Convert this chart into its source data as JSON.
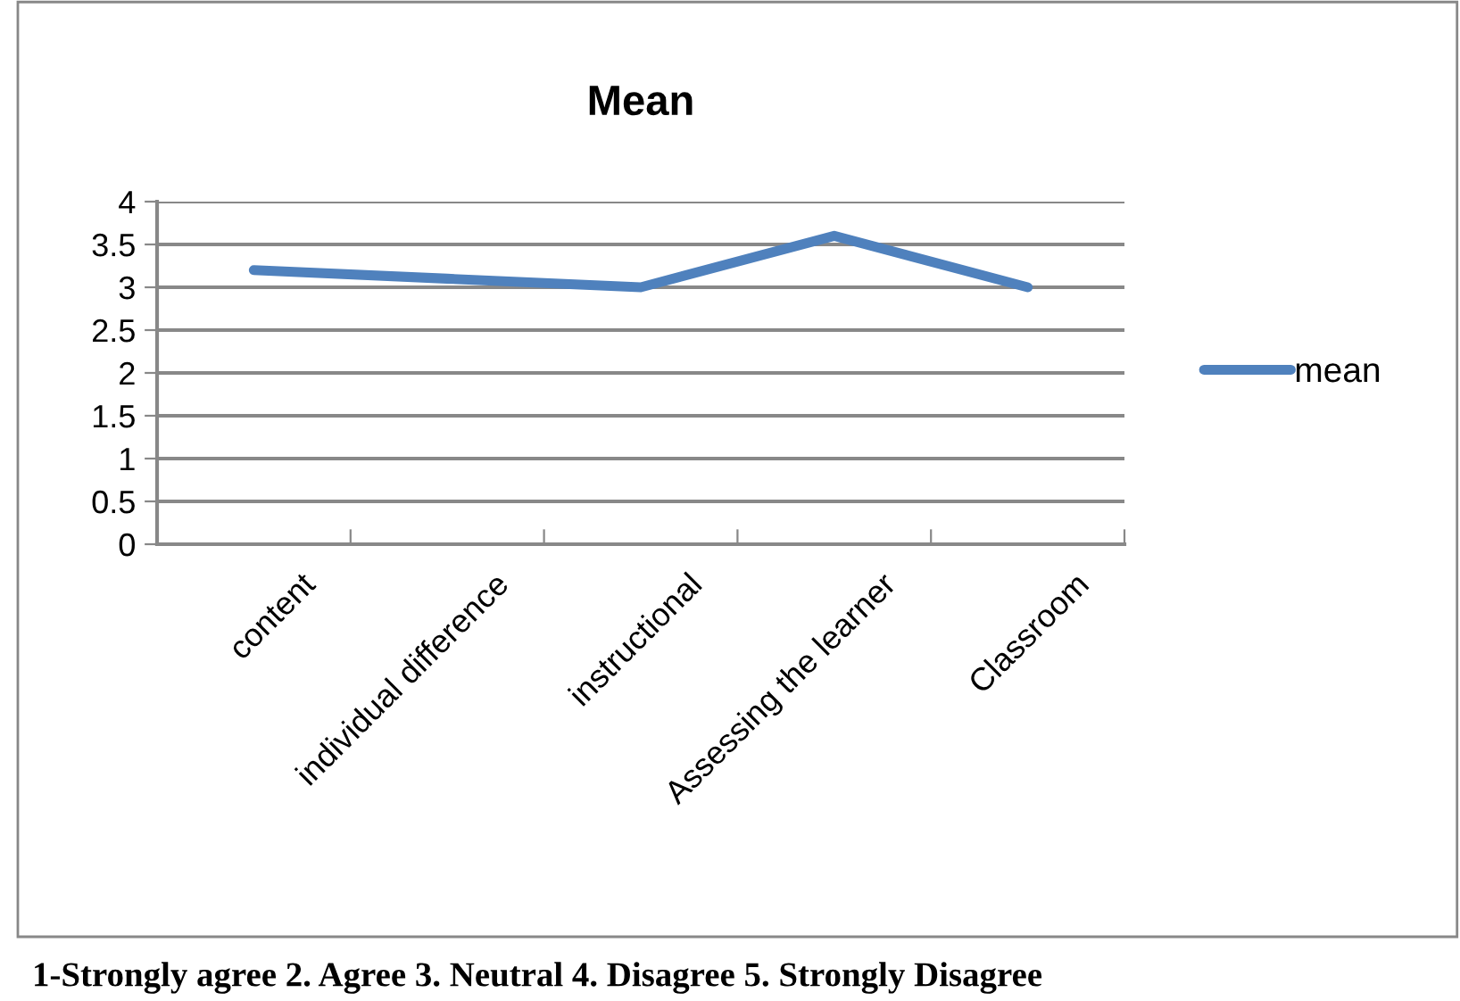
{
  "chart_data": {
    "type": "line",
    "title": "Mean",
    "categories": [
      "content",
      "individual difference",
      "instructional",
      "Assessing the learner",
      "Classroom"
    ],
    "series": [
      {
        "name": "mean",
        "color": "#4f81bd",
        "values": [
          3.2,
          3.1,
          3.0,
          3.6,
          3.0
        ]
      }
    ],
    "ylim": [
      0,
      4
    ],
    "yticks": [
      0,
      0.5,
      1,
      1.5,
      2,
      2.5,
      3,
      3.5,
      4
    ],
    "grid": "y",
    "legend": "right",
    "marker": "none",
    "line_style": "solid",
    "annotations": [
      "1-Strongly agree 2. Agree 3. Neutral 4. Disagree 5. Strongly Disagree"
    ]
  }
}
